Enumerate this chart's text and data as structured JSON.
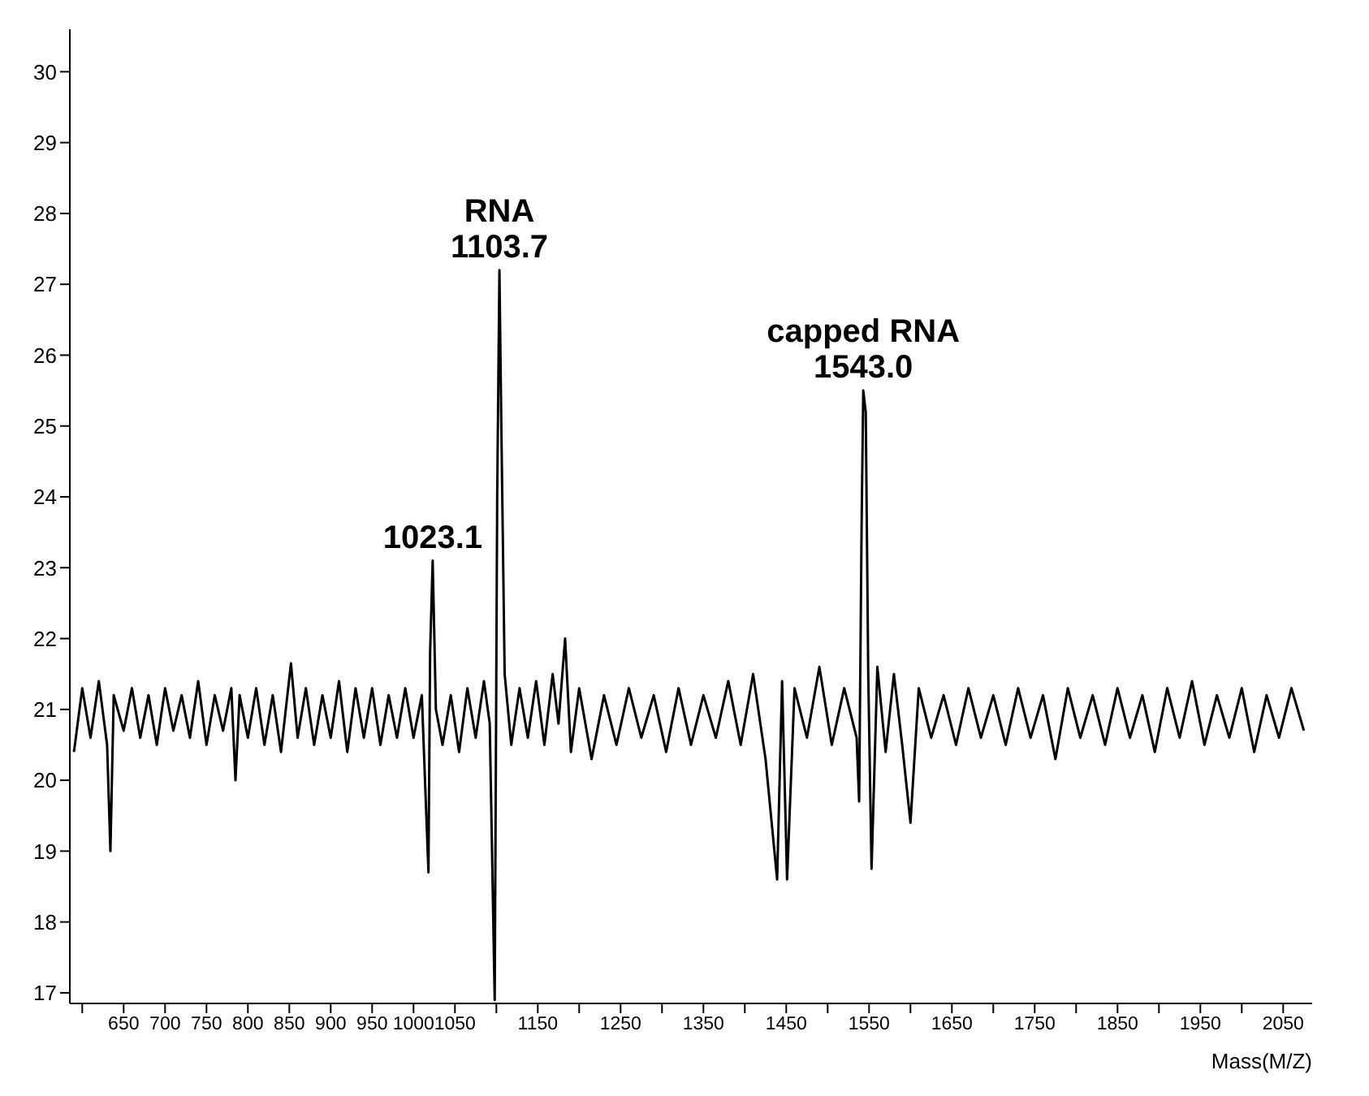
{
  "chart_data": {
    "type": "line",
    "xlabel": "Mass(M/Z)",
    "xlim": [
      585,
      2085
    ],
    "ylim": [
      16.85,
      30.6
    ],
    "xticks": [
      {
        "value": 600,
        "label": null
      },
      650,
      700,
      750,
      800,
      850,
      900,
      950,
      1000,
      1050,
      {
        "value": 1100,
        "label": null
      },
      1150,
      {
        "value": 1200,
        "label": null
      },
      1250,
      {
        "value": 1300,
        "label": null
      },
      1350,
      {
        "value": 1400,
        "label": null
      },
      1450,
      {
        "value": 1500,
        "label": null
      },
      1550,
      {
        "value": 1600,
        "label": null
      },
      1650,
      {
        "value": 1700,
        "label": null
      },
      1750,
      {
        "value": 1800,
        "label": null
      },
      1850,
      {
        "value": 1900,
        "label": null
      },
      1950,
      {
        "value": 2000,
        "label": null
      },
      2050
    ],
    "yticks": [
      17,
      18,
      19,
      20,
      21,
      22,
      23,
      24,
      25,
      26,
      27,
      28,
      29,
      30
    ],
    "grid": false,
    "legend": false,
    "annotations": [
      {
        "text": "1023.1",
        "x": 1023.1,
        "y": 23.1
      },
      {
        "text": "RNA\n1103.7",
        "x": 1103.7,
        "y": 27.2
      },
      {
        "text": "capped RNA\n1543.0",
        "x": 1543.0,
        "y": 25.5
      }
    ],
    "series": [
      {
        "color": "#000000",
        "x": [
          590,
          600,
          610,
          620,
          630,
          634,
          638,
          650,
          660,
          670,
          680,
          690,
          700,
          710,
          720,
          730,
          740,
          750,
          760,
          770,
          780,
          785,
          790,
          800,
          810,
          820,
          830,
          840,
          852,
          860,
          870,
          880,
          890,
          900,
          910,
          920,
          930,
          940,
          950,
          960,
          970,
          980,
          990,
          1000,
          1010,
          1018,
          1020,
          1023.1,
          1027,
          1035,
          1045,
          1055,
          1065,
          1075,
          1085,
          1092,
          1098,
          1101,
          1103.7,
          1106,
          1110,
          1118,
          1128,
          1138,
          1148,
          1158,
          1168,
          1175,
          1183,
          1190,
          1200,
          1215,
          1230,
          1245,
          1260,
          1275,
          1290,
          1305,
          1320,
          1335,
          1350,
          1365,
          1380,
          1395,
          1410,
          1425,
          1439,
          1445,
          1451,
          1460,
          1475,
          1490,
          1505,
          1520,
          1535,
          1538,
          1541,
          1543.0,
          1546,
          1549,
          1553,
          1560,
          1570,
          1580,
          1590,
          1600,
          1610,
          1625,
          1640,
          1655,
          1670,
          1685,
          1700,
          1715,
          1730,
          1745,
          1760,
          1775,
          1790,
          1805,
          1820,
          1835,
          1850,
          1865,
          1880,
          1895,
          1910,
          1925,
          1940,
          1955,
          1970,
          1985,
          2000,
          2015,
          2030,
          2045,
          2060,
          2075
        ],
        "values": [
          20.4,
          21.3,
          20.6,
          21.4,
          20.5,
          19.0,
          21.2,
          20.7,
          21.3,
          20.6,
          21.2,
          20.5,
          21.3,
          20.7,
          21.2,
          20.6,
          21.4,
          20.5,
          21.2,
          20.7,
          21.3,
          20.0,
          21.2,
          20.6,
          21.3,
          20.5,
          21.2,
          20.4,
          21.65,
          20.6,
          21.3,
          20.5,
          21.2,
          20.6,
          21.4,
          20.4,
          21.3,
          20.6,
          21.3,
          20.5,
          21.2,
          20.6,
          21.3,
          20.6,
          21.2,
          18.7,
          21.8,
          23.1,
          21.0,
          20.5,
          21.2,
          20.4,
          21.3,
          20.6,
          21.4,
          20.8,
          16.9,
          24.0,
          27.2,
          25.0,
          21.5,
          20.5,
          21.3,
          20.6,
          21.4,
          20.5,
          21.5,
          20.8,
          22.0,
          20.4,
          21.3,
          20.3,
          21.2,
          20.5,
          21.3,
          20.6,
          21.2,
          20.4,
          21.3,
          20.5,
          21.2,
          20.6,
          21.4,
          20.5,
          21.5,
          20.3,
          18.6,
          21.4,
          18.6,
          21.3,
          20.6,
          21.6,
          20.5,
          21.3,
          20.6,
          19.7,
          23.6,
          25.5,
          25.2,
          21.5,
          18.75,
          21.6,
          20.4,
          21.5,
          20.5,
          19.4,
          21.3,
          20.6,
          21.2,
          20.5,
          21.3,
          20.6,
          21.2,
          20.5,
          21.3,
          20.6,
          21.2,
          20.3,
          21.3,
          20.6,
          21.2,
          20.5,
          21.3,
          20.6,
          21.2,
          20.4,
          21.3,
          20.6,
          21.4,
          20.5,
          21.2,
          20.6,
          21.3,
          20.4,
          21.2,
          20.6,
          21.3,
          20.7
        ]
      }
    ]
  }
}
